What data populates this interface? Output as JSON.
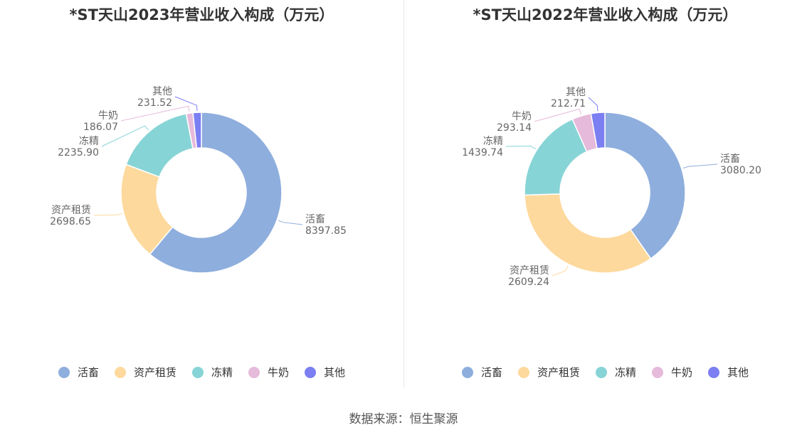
{
  "colors": [
    "#8eaedd",
    "#fdd99d",
    "#87d4d6",
    "#e6bada",
    "#7b7ff2"
  ],
  "source_text": "数据来源：恒生聚源",
  "chart_data": [
    {
      "type": "pie",
      "title": "*ST天山2023年营业收入构成（万元）",
      "categories": [
        "活畜",
        "资产租赁",
        "冻精",
        "牛奶",
        "其他"
      ],
      "values": [
        8397.85,
        2698.65,
        2235.9,
        186.07,
        231.52
      ],
      "value_labels": [
        "8397.85",
        "2698.65",
        "2235.90",
        "186.07",
        "231.52"
      ],
      "legend_position": "bottom"
    },
    {
      "type": "pie",
      "title": "*ST天山2022年营业收入构成（万元）",
      "categories": [
        "活畜",
        "资产租赁",
        "冻精",
        "牛奶",
        "其他"
      ],
      "values": [
        3080.2,
        2609.24,
        1439.74,
        293.14,
        212.71
      ],
      "value_labels": [
        "3080.20",
        "2609.24",
        "1439.74",
        "293.14",
        "212.71"
      ],
      "legend_position": "bottom"
    }
  ]
}
